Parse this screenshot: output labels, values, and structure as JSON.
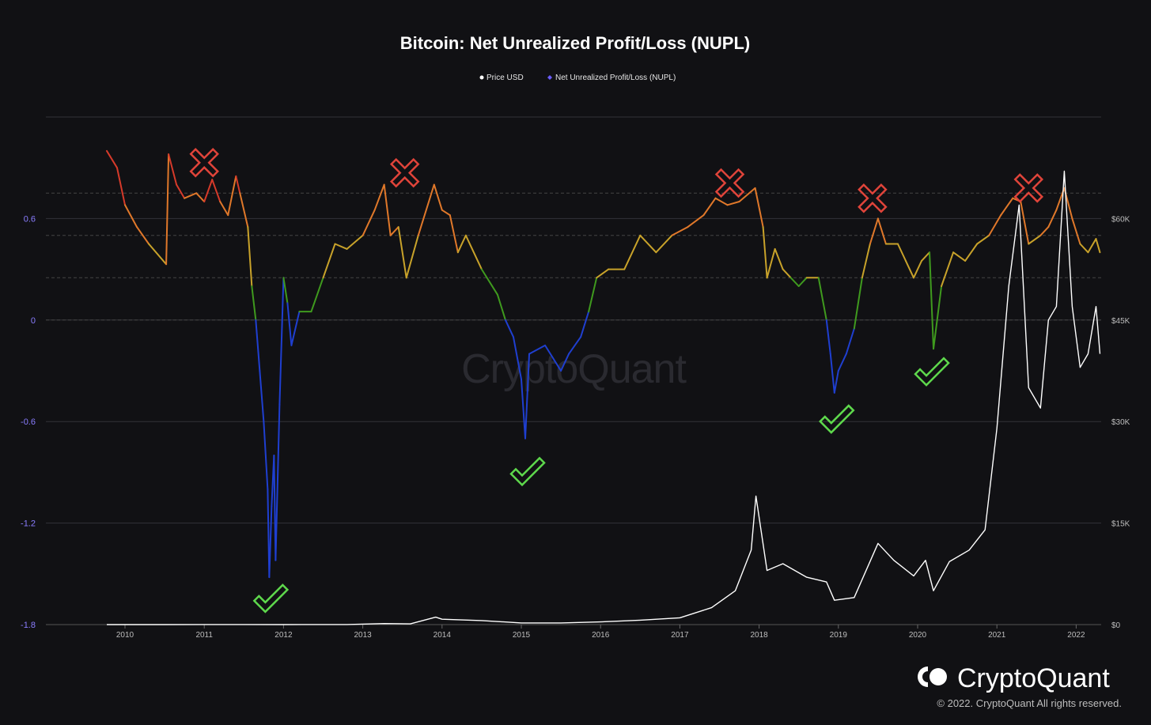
{
  "title": "Bitcoin: Net Unrealized Profit/Loss (NUPL)",
  "legend": [
    {
      "label": "Price USD",
      "color": "#ffffff"
    },
    {
      "label": "Net Unrealized Profit/Loss (NUPL)",
      "color": "#6a5cff"
    }
  ],
  "watermark": "CryptoQuant",
  "brand": "CryptoQuant",
  "copyright": "© 2022. CryptoQuant All rights reserved.",
  "colors": {
    "background": "#111114",
    "grid": "#333338",
    "price": "#ffffff",
    "capitulation": "#1f3fd0",
    "hope_fear": "#3f9a1e",
    "optimism_anxiety": "#c8a22a",
    "belief_denial": "#e0782a",
    "euphoria_greed": "#d63a2a",
    "cross_marker": "#e0443a",
    "check_marker": "#5ed84c"
  },
  "chart_data": {
    "type": "line",
    "title": "Bitcoin: Net Unrealized Profit/Loss (NUPL)",
    "x_ticks": [
      "2010",
      "2011",
      "2012",
      "2013",
      "2014",
      "2015",
      "2016",
      "2017",
      "2018",
      "2019",
      "2020",
      "2021",
      "2022"
    ],
    "y_left": {
      "ticks": [
        "-1.8",
        "-1.2",
        "-0.6",
        "0",
        "0.6"
      ],
      "range": [
        -1.8,
        1.2
      ]
    },
    "y_right": {
      "ticks": [
        "$0",
        "$15K",
        "$30K",
        "$45K",
        "$60K"
      ],
      "range": [
        0,
        75000
      ]
    },
    "grid": true,
    "legend_position": "top-center",
    "zone_thresholds": [
      0,
      0.25,
      0.5,
      0.75
    ],
    "series": [
      {
        "name": "Net Unrealized Profit/Loss (NUPL)",
        "axis": "left",
        "points": [
          [
            2009.77,
            1.0
          ],
          [
            2009.9,
            0.9
          ],
          [
            2010.0,
            0.68
          ],
          [
            2010.15,
            0.55
          ],
          [
            2010.3,
            0.45
          ],
          [
            2010.52,
            0.33
          ],
          [
            2010.55,
            0.98
          ],
          [
            2010.65,
            0.8
          ],
          [
            2010.75,
            0.72
          ],
          [
            2010.9,
            0.75
          ],
          [
            2011.0,
            0.7
          ],
          [
            2011.1,
            0.83
          ],
          [
            2011.2,
            0.7
          ],
          [
            2011.3,
            0.62
          ],
          [
            2011.4,
            0.85
          ],
          [
            2011.45,
            0.75
          ],
          [
            2011.55,
            0.55
          ],
          [
            2011.6,
            0.2
          ],
          [
            2011.65,
            0.0
          ],
          [
            2011.7,
            -0.3
          ],
          [
            2011.75,
            -0.6
          ],
          [
            2011.8,
            -1.0
          ],
          [
            2011.82,
            -1.52
          ],
          [
            2011.85,
            -1.1
          ],
          [
            2011.88,
            -0.8
          ],
          [
            2011.9,
            -1.42
          ],
          [
            2011.95,
            -0.5
          ],
          [
            2012.0,
            0.25
          ],
          [
            2012.05,
            0.1
          ],
          [
            2012.1,
            -0.15
          ],
          [
            2012.2,
            0.05
          ],
          [
            2012.35,
            0.05
          ],
          [
            2012.5,
            0.25
          ],
          [
            2012.65,
            0.45
          ],
          [
            2012.8,
            0.42
          ],
          [
            2013.0,
            0.5
          ],
          [
            2013.15,
            0.65
          ],
          [
            2013.27,
            0.8
          ],
          [
            2013.35,
            0.5
          ],
          [
            2013.45,
            0.55
          ],
          [
            2013.55,
            0.25
          ],
          [
            2013.7,
            0.5
          ],
          [
            2013.9,
            0.8
          ],
          [
            2014.0,
            0.65
          ],
          [
            2014.1,
            0.62
          ],
          [
            2014.2,
            0.4
          ],
          [
            2014.3,
            0.5
          ],
          [
            2014.5,
            0.3
          ],
          [
            2014.7,
            0.15
          ],
          [
            2014.8,
            0.0
          ],
          [
            2014.9,
            -0.1
          ],
          [
            2015.0,
            -0.35
          ],
          [
            2015.05,
            -0.7
          ],
          [
            2015.1,
            -0.2
          ],
          [
            2015.3,
            -0.15
          ],
          [
            2015.5,
            -0.3
          ],
          [
            2015.6,
            -0.2
          ],
          [
            2015.75,
            -0.1
          ],
          [
            2015.85,
            0.05
          ],
          [
            2015.95,
            0.25
          ],
          [
            2016.1,
            0.3
          ],
          [
            2016.3,
            0.3
          ],
          [
            2016.5,
            0.5
          ],
          [
            2016.7,
            0.4
          ],
          [
            2016.9,
            0.5
          ],
          [
            2017.1,
            0.55
          ],
          [
            2017.3,
            0.62
          ],
          [
            2017.45,
            0.72
          ],
          [
            2017.6,
            0.68
          ],
          [
            2017.75,
            0.7
          ],
          [
            2017.95,
            0.78
          ],
          [
            2018.05,
            0.55
          ],
          [
            2018.1,
            0.25
          ],
          [
            2018.2,
            0.42
          ],
          [
            2018.3,
            0.3
          ],
          [
            2018.4,
            0.25
          ],
          [
            2018.5,
            0.2
          ],
          [
            2018.6,
            0.25
          ],
          [
            2018.75,
            0.25
          ],
          [
            2018.85,
            0.0
          ],
          [
            2018.9,
            -0.2
          ],
          [
            2018.95,
            -0.43
          ],
          [
            2019.0,
            -0.3
          ],
          [
            2019.1,
            -0.2
          ],
          [
            2019.2,
            -0.05
          ],
          [
            2019.3,
            0.25
          ],
          [
            2019.4,
            0.45
          ],
          [
            2019.5,
            0.6
          ],
          [
            2019.6,
            0.45
          ],
          [
            2019.75,
            0.45
          ],
          [
            2019.85,
            0.35
          ],
          [
            2019.95,
            0.25
          ],
          [
            2020.05,
            0.35
          ],
          [
            2020.15,
            0.4
          ],
          [
            2020.2,
            -0.17
          ],
          [
            2020.3,
            0.2
          ],
          [
            2020.45,
            0.4
          ],
          [
            2020.6,
            0.35
          ],
          [
            2020.75,
            0.45
          ],
          [
            2020.9,
            0.5
          ],
          [
            2021.05,
            0.62
          ],
          [
            2021.2,
            0.72
          ],
          [
            2021.3,
            0.7
          ],
          [
            2021.4,
            0.45
          ],
          [
            2021.55,
            0.5
          ],
          [
            2021.65,
            0.55
          ],
          [
            2021.75,
            0.65
          ],
          [
            2021.85,
            0.78
          ],
          [
            2021.95,
            0.6
          ],
          [
            2022.05,
            0.45
          ],
          [
            2022.15,
            0.4
          ],
          [
            2022.25,
            0.48
          ],
          [
            2022.3,
            0.4
          ]
        ]
      },
      {
        "name": "Price USD",
        "axis": "right",
        "points": [
          [
            2009.77,
            0
          ],
          [
            2010.5,
            0
          ],
          [
            2011.5,
            15
          ],
          [
            2012.0,
            5
          ],
          [
            2012.8,
            12
          ],
          [
            2013.27,
            150
          ],
          [
            2013.6,
            100
          ],
          [
            2013.92,
            1100
          ],
          [
            2014.0,
            800
          ],
          [
            2014.5,
            600
          ],
          [
            2015.0,
            250
          ],
          [
            2015.5,
            250
          ],
          [
            2016.0,
            400
          ],
          [
            2016.5,
            650
          ],
          [
            2017.0,
            1000
          ],
          [
            2017.4,
            2500
          ],
          [
            2017.7,
            5000
          ],
          [
            2017.9,
            11000
          ],
          [
            2017.96,
            19000
          ],
          [
            2018.1,
            8000
          ],
          [
            2018.3,
            9000
          ],
          [
            2018.6,
            7000
          ],
          [
            2018.85,
            6300
          ],
          [
            2018.95,
            3600
          ],
          [
            2019.2,
            4000
          ],
          [
            2019.5,
            12000
          ],
          [
            2019.7,
            9500
          ],
          [
            2019.95,
            7200
          ],
          [
            2020.1,
            9500
          ],
          [
            2020.2,
            5000
          ],
          [
            2020.4,
            9300
          ],
          [
            2020.65,
            11000
          ],
          [
            2020.85,
            14000
          ],
          [
            2021.0,
            29000
          ],
          [
            2021.15,
            50000
          ],
          [
            2021.28,
            62000
          ],
          [
            2021.4,
            35000
          ],
          [
            2021.55,
            32000
          ],
          [
            2021.65,
            45000
          ],
          [
            2021.75,
            47000
          ],
          [
            2021.85,
            67000
          ],
          [
            2021.95,
            47000
          ],
          [
            2022.05,
            38000
          ],
          [
            2022.15,
            40000
          ],
          [
            2022.25,
            47000
          ],
          [
            2022.3,
            40000
          ]
        ]
      }
    ],
    "annotations": {
      "cross_markers": [
        {
          "x": 2011.0,
          "y": 0.93
        },
        {
          "x": 2013.53,
          "y": 0.87
        },
        {
          "x": 2017.63,
          "y": 0.81
        },
        {
          "x": 2019.43,
          "y": 0.72
        },
        {
          "x": 2021.4,
          "y": 0.78
        }
      ],
      "check_markers": [
        {
          "x": 2011.83,
          "y": -1.65
        },
        {
          "x": 2015.07,
          "y": -0.9
        },
        {
          "x": 2018.97,
          "y": -0.59
        },
        {
          "x": 2020.17,
          "y": -0.31
        }
      ]
    }
  }
}
